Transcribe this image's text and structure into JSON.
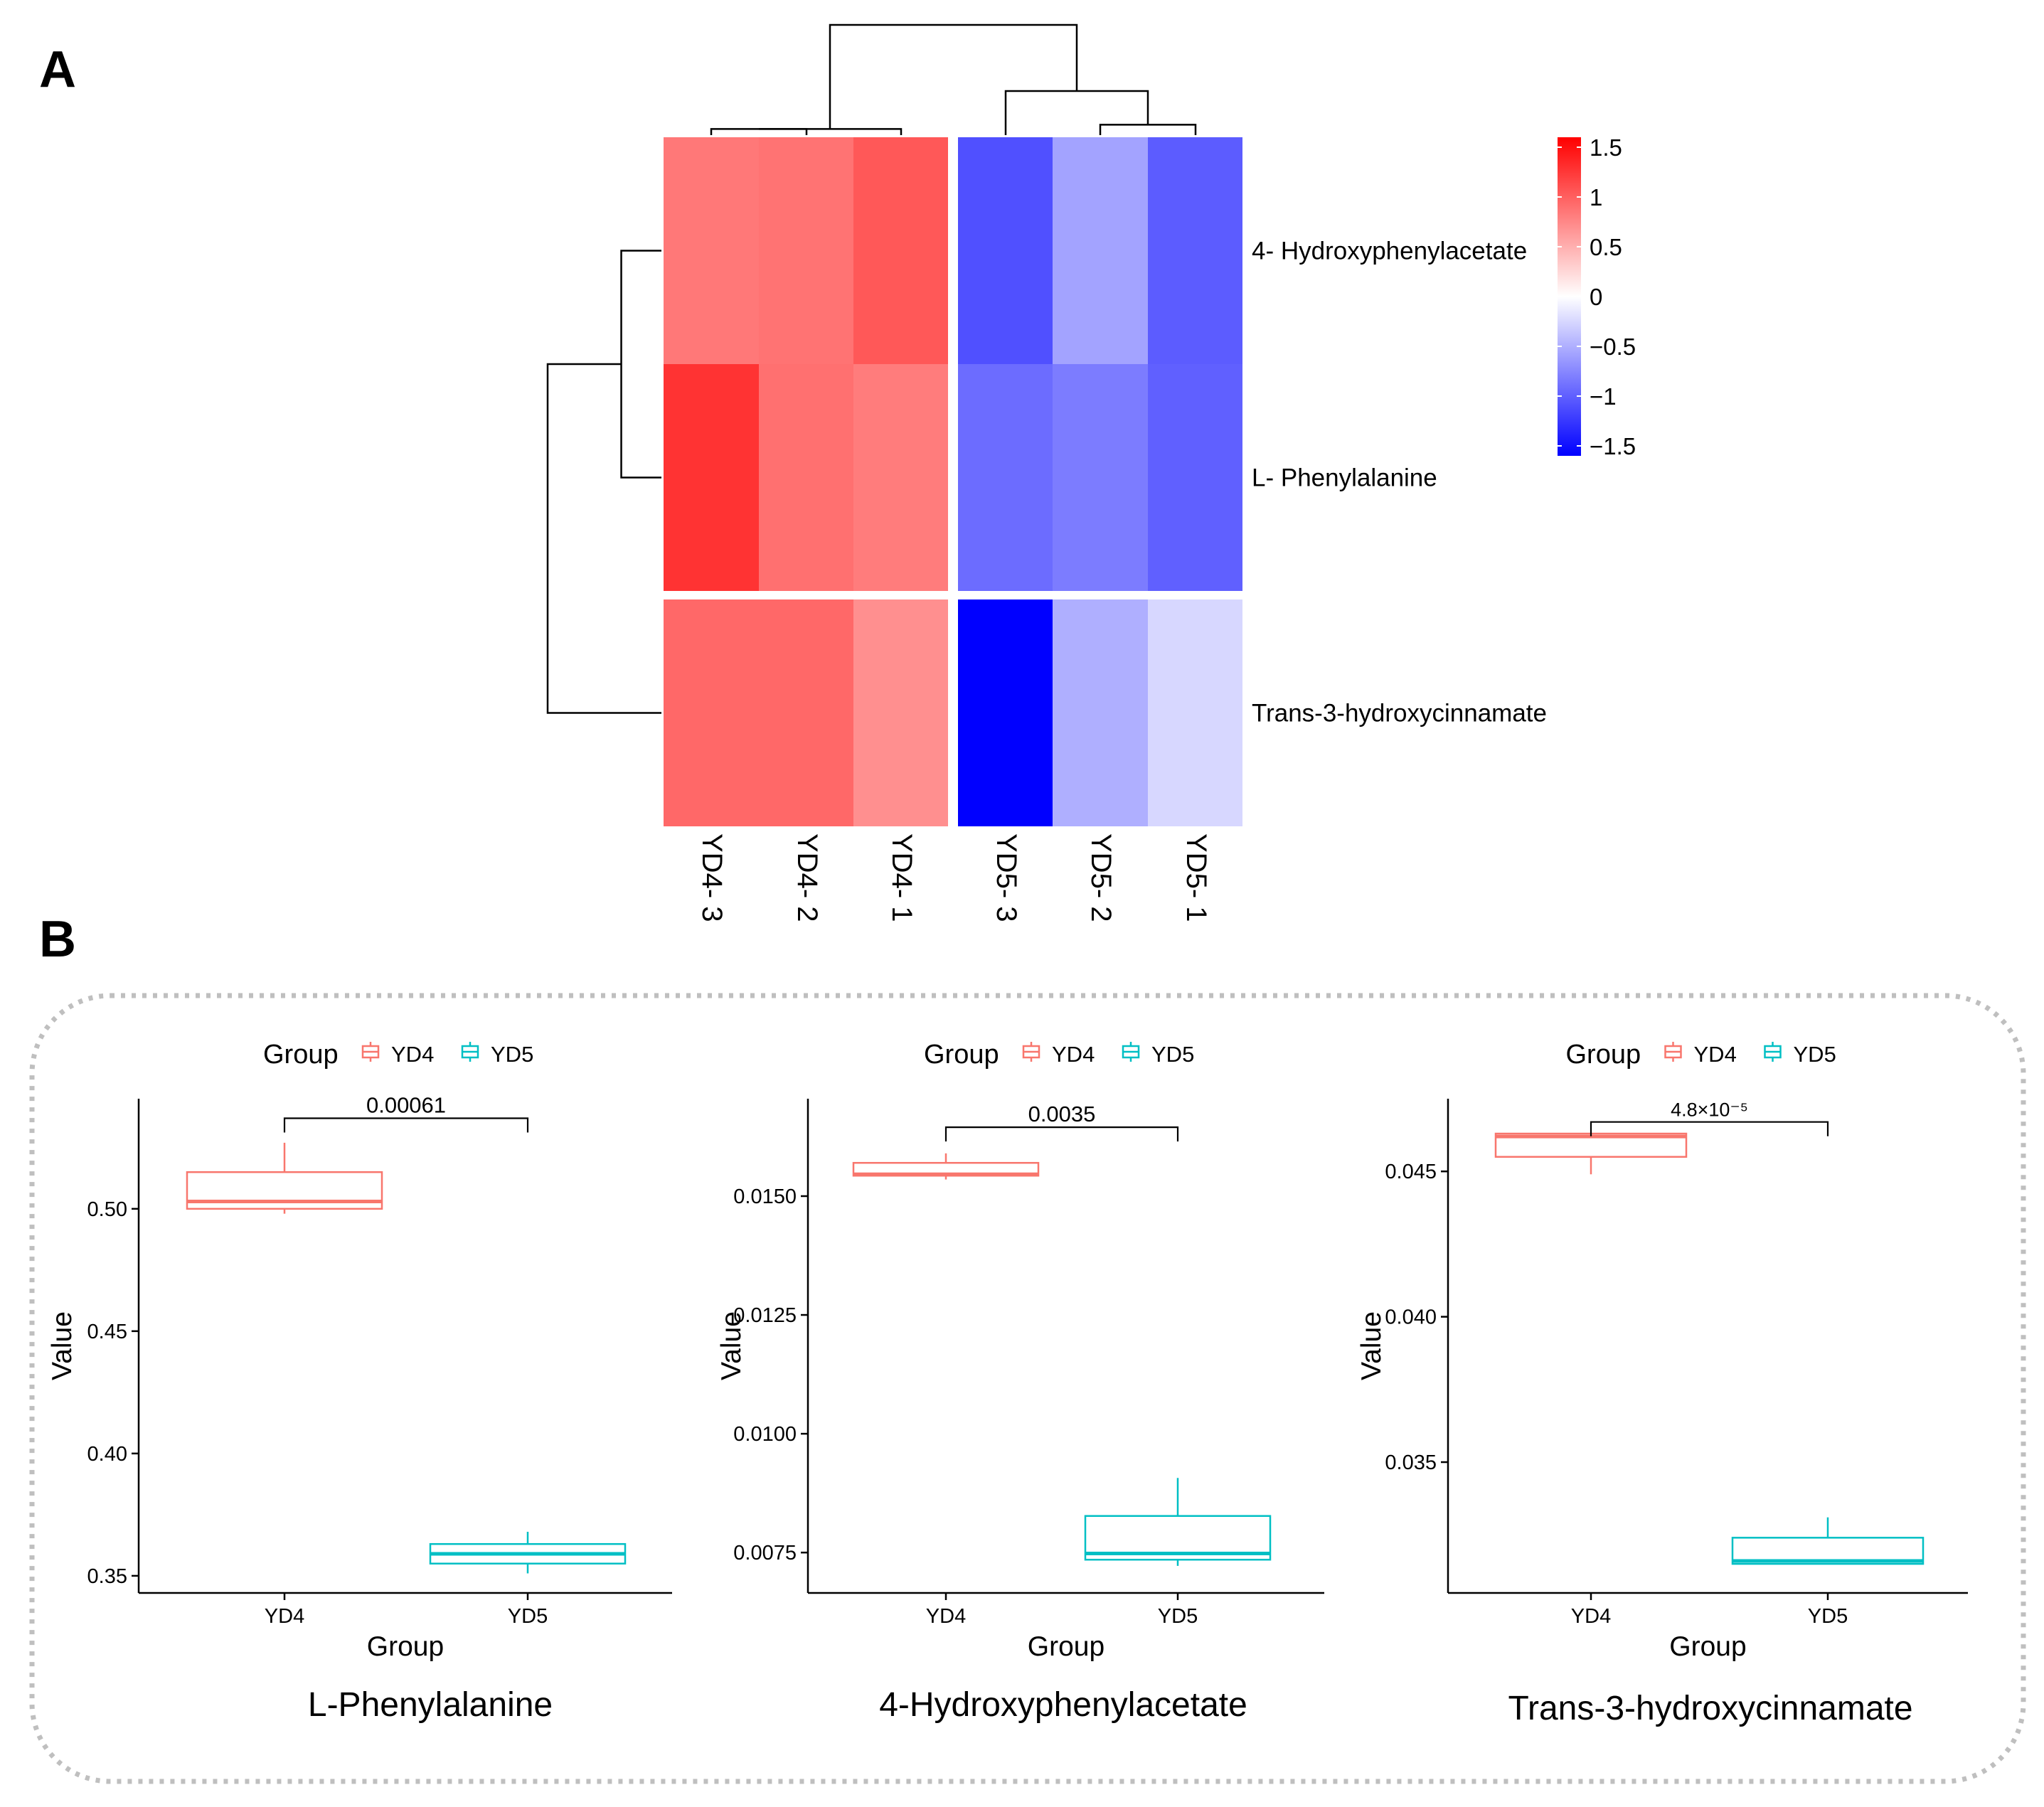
{
  "panels": {
    "a_label": "A",
    "b_label": "B"
  },
  "chart_data": [
    {
      "type": "heatmap",
      "title": "",
      "columns": [
        "YD4- 3",
        "YD4- 2",
        "YD4- 1",
        "YD5- 3",
        "YD5- 2",
        "YD5- 1"
      ],
      "rows": [
        "4- Hydroxyphenylacetate",
        "L- Phenylalanine",
        "Trans-3-hydroxycinnamate"
      ],
      "values": [
        [
          0.85,
          0.88,
          1.05,
          -1.1,
          -0.58,
          -1.02
        ],
        [
          1.28,
          0.9,
          0.82,
          -0.92,
          -0.82,
          -1.0
        ],
        [
          0.95,
          0.95,
          0.7,
          -1.62,
          -0.5,
          -0.25
        ]
      ],
      "column_split_after": 3,
      "row_split_after": 2,
      "color_scale": {
        "min": -1.6,
        "max": 1.6,
        "low": "#0000ff",
        "mid": "#ffffff",
        "high": "#ff0000"
      },
      "legend": {
        "ticks": [
          1.5,
          1,
          0.5,
          0,
          -0.5,
          -1,
          -1.5
        ],
        "tick_labels": [
          "1.5",
          "1",
          "0.5",
          "0",
          "−0.5",
          "−1",
          "−1.5"
        ],
        "placement": "right"
      },
      "column_dendrogram": [
        {
          "a": 0,
          "b": 1,
          "height": 0.5
        },
        {
          "a": "0-1",
          "b": 2,
          "height": 0.5
        },
        {
          "a": 4,
          "b": 5,
          "height": 0.85
        },
        {
          "a": 3,
          "b": "4-5",
          "height": 3.6
        },
        {
          "a": "0-2",
          "b": "3-5",
          "height": 9.0
        }
      ],
      "row_dendrogram": [
        {
          "a": 0,
          "b": 1,
          "height": 3.0
        },
        {
          "a": "0-1",
          "b": 2,
          "height": 8.5
        }
      ]
    },
    {
      "type": "box",
      "panel_title": "L-Phenylalanine",
      "xlabel": "Group",
      "ylabel": "Value",
      "categories": [
        "YD4",
        "YD5"
      ],
      "legend": {
        "title": "Group",
        "entries": [
          "YD4",
          "YD5"
        ],
        "placement": "top"
      },
      "colors": {
        "YD4": "#f8766d",
        "YD5": "#00bfc4"
      },
      "ylim": [
        0.343,
        0.545
      ],
      "yticks": [
        0.35,
        0.4,
        0.45,
        0.5
      ],
      "ytick_labels": [
        "0.35",
        "0.40",
        "0.45",
        "0.50"
      ],
      "boxes": [
        {
          "group": "YD4",
          "whisker_low": 0.498,
          "q1": 0.5,
          "median": 0.503,
          "q3": 0.515,
          "whisker_high": 0.527
        },
        {
          "group": "YD5",
          "whisker_low": 0.351,
          "q1": 0.355,
          "median": 0.359,
          "q3": 0.363,
          "whisker_high": 0.368
        }
      ],
      "pvalue": "0.00061",
      "bracket_y": 0.537
    },
    {
      "type": "box",
      "panel_title": "4-Hydroxyphenylacetate",
      "xlabel": "Group",
      "ylabel": "Value",
      "categories": [
        "YD4",
        "YD5"
      ],
      "legend": {
        "title": "Group",
        "entries": [
          "YD4",
          "YD5"
        ],
        "placement": "top"
      },
      "colors": {
        "YD4": "#f8766d",
        "YD5": "#00bfc4"
      },
      "ylim": [
        0.00665,
        0.01705
      ],
      "yticks": [
        0.0075,
        0.01,
        0.0125,
        0.015
      ],
      "ytick_labels": [
        "0.0075",
        "0.0100",
        "0.0125",
        "0.0150"
      ],
      "boxes": [
        {
          "group": "YD4",
          "whisker_low": 0.01535,
          "q1": 0.01543,
          "median": 0.01546,
          "q3": 0.0157,
          "whisker_high": 0.0159
        },
        {
          "group": "YD5",
          "whisker_low": 0.00722,
          "q1": 0.00735,
          "median": 0.00748,
          "q3": 0.00827,
          "whisker_high": 0.00907
        }
      ],
      "pvalue": "0.0035",
      "bracket_y": 0.01645
    },
    {
      "type": "box",
      "panel_title": "Trans-3-hydroxycinnamate",
      "xlabel": "Group",
      "ylabel": "Value",
      "categories": [
        "YD4",
        "YD5"
      ],
      "legend": {
        "title": "Group",
        "entries": [
          "YD4",
          "YD5"
        ],
        "placement": "top"
      },
      "colors": {
        "YD4": "#f8766d",
        "YD5": "#00bfc4"
      },
      "ylim": [
        0.0305,
        0.0475
      ],
      "yticks": [
        0.035,
        0.04,
        0.045
      ],
      "ytick_labels": [
        "0.035",
        "0.040",
        "0.045"
      ],
      "boxes": [
        {
          "group": "YD4",
          "whisker_low": 0.0449,
          "q1": 0.0455,
          "median": 0.0462,
          "q3": 0.0463,
          "whisker_high": 0.0463
        },
        {
          "group": "YD5",
          "whisker_low": 0.0315,
          "q1": 0.0315,
          "median": 0.0316,
          "q3": 0.0324,
          "whisker_high": 0.0331
        }
      ],
      "pvalue": "4.8×10⁻⁵",
      "bracket_y": 0.0467
    }
  ]
}
